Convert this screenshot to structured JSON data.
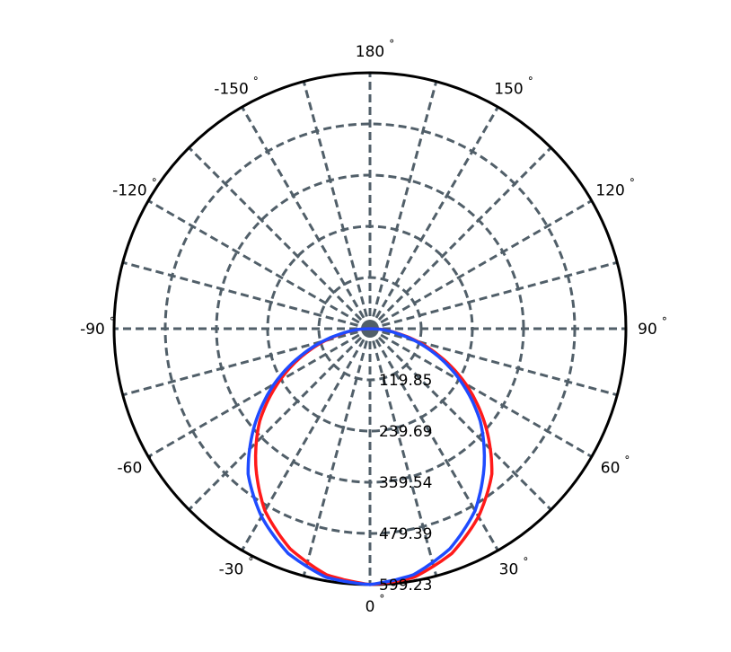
{
  "chart_data": {
    "type": "polar-line",
    "title": "",
    "angle_unit": "degrees",
    "angle_zero": "bottom",
    "angle_direction": "positive-toward-right",
    "angle_ticks": [
      0,
      30,
      60,
      90,
      120,
      150,
      180,
      -150,
      -120,
      -90,
      -60,
      -30
    ],
    "angle_tick_labels": [
      "0",
      "30",
      "60",
      "90",
      "120",
      "150",
      "180",
      "-150",
      "-120",
      "-90",
      "-60",
      "-30"
    ],
    "degree_symbol": "°",
    "radial_gridline_step_deg": 15,
    "radial_ticks": [
      119.85,
      239.69,
      359.54,
      479.39,
      599.23
    ],
    "radial_tick_labels": [
      "119.85",
      "239.69",
      "359.54",
      "479.39",
      "599.23"
    ],
    "rmax": 599.23,
    "grid": true,
    "grid_color": "#515f69",
    "series": [
      {
        "color": "#ff1a1a",
        "angles": [
          -90,
          -80,
          -70,
          -60,
          -50,
          -40,
          -30,
          -20,
          -10,
          0,
          10,
          20,
          30,
          40,
          50,
          60,
          70,
          80,
          90
        ],
        "values": [
          0,
          65,
          153,
          245,
          337,
          416,
          492,
          548,
          585,
          599,
          591,
          560,
          508,
          444,
          353,
          259,
          161,
          69,
          0
        ]
      },
      {
        "color": "#1f4bff",
        "angles": [
          -90,
          -80,
          -70,
          -60,
          -50,
          -40,
          -30,
          -20,
          -10,
          0,
          10,
          20,
          30,
          40,
          50,
          60,
          70,
          80,
          90
        ],
        "values": [
          0,
          69,
          161,
          259,
          353,
          444,
          508,
          560,
          591,
          599,
          585,
          548,
          492,
          416,
          337,
          245,
          153,
          65,
          0
        ]
      }
    ]
  }
}
